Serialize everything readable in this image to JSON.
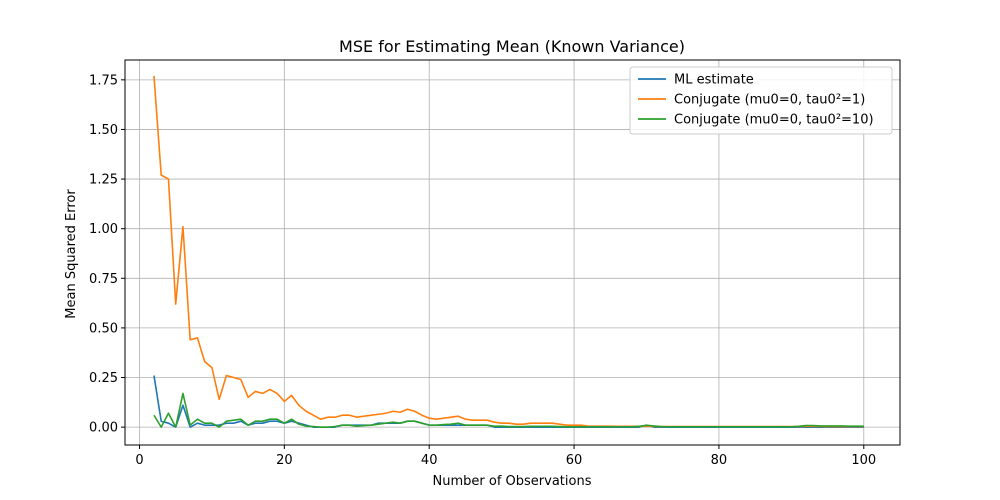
{
  "chart_data": {
    "type": "line",
    "title": "MSE for Estimating Mean (Known Variance)",
    "xlabel": "Number of Observations",
    "ylabel": "Mean Squared Error",
    "xlim": [
      -2,
      105
    ],
    "ylim": [
      -0.09,
      1.85
    ],
    "xticks": [
      0,
      20,
      40,
      60,
      80,
      100
    ],
    "xtick_labels": [
      "0",
      "20",
      "40",
      "60",
      "80",
      "100"
    ],
    "yticks": [
      0,
      0.25,
      0.5,
      0.75,
      1.0,
      1.25,
      1.5,
      1.75
    ],
    "ytick_labels": [
      "0.00",
      "0.25",
      "0.50",
      "0.75",
      "1.00",
      "1.25",
      "1.50",
      "1.75"
    ],
    "grid": true,
    "legend_position": "top-right",
    "x": [
      2,
      3,
      4,
      5,
      6,
      7,
      8,
      9,
      10,
      11,
      12,
      13,
      14,
      15,
      16,
      17,
      18,
      19,
      20,
      21,
      22,
      23,
      24,
      25,
      26,
      27,
      28,
      29,
      30,
      31,
      32,
      33,
      34,
      35,
      36,
      37,
      38,
      39,
      40,
      41,
      42,
      43,
      44,
      45,
      46,
      47,
      48,
      49,
      50,
      51,
      52,
      53,
      54,
      55,
      56,
      57,
      58,
      59,
      60,
      61,
      62,
      63,
      64,
      65,
      66,
      67,
      68,
      69,
      70,
      71,
      72,
      73,
      74,
      75,
      76,
      77,
      78,
      79,
      80,
      81,
      82,
      83,
      84,
      85,
      86,
      87,
      88,
      89,
      90,
      91,
      92,
      93,
      94,
      95,
      96,
      97,
      98,
      99,
      100
    ],
    "series": [
      {
        "name": "ML estimate",
        "color": "#1f77b4",
        "values": [
          0.26,
          0.03,
          0.02,
          0.0,
          0.11,
          0.0,
          0.02,
          0.01,
          0.01,
          0.01,
          0.02,
          0.02,
          0.03,
          0.01,
          0.02,
          0.02,
          0.03,
          0.03,
          0.02,
          0.03,
          0.02,
          0.01,
          0.0,
          0.0,
          0.0,
          0.0,
          0.01,
          0.01,
          0.01,
          0.01,
          0.01,
          0.02,
          0.02,
          0.02,
          0.02,
          0.03,
          0.03,
          0.02,
          0.01,
          0.01,
          0.01,
          0.01,
          0.01,
          0.01,
          0.01,
          0.01,
          0.01,
          0.0,
          0.0,
          0.0,
          0.0,
          0.0,
          0.0,
          0.0,
          0.0,
          0.0,
          0.0,
          0.0,
          0.0,
          0.0,
          0.0,
          0.0,
          0.0,
          0.0,
          0.0,
          0.0,
          0.0,
          0.0,
          0.01,
          0.0,
          0.0,
          0.0,
          0.0,
          0.0,
          0.0,
          0.0,
          0.0,
          0.0,
          0.0,
          0.0,
          0.0,
          0.0,
          0.0,
          0.0,
          0.0,
          0.0,
          0.0,
          0.0,
          0.0,
          0.0,
          0.0,
          0.0,
          0.0,
          0.0,
          0.0,
          0.0,
          0.0,
          0.0,
          0.0
        ]
      },
      {
        "name": "Conjugate (mu0=0, tau0²=1)",
        "color": "#ff7f0e",
        "values": [
          1.77,
          1.27,
          1.25,
          0.62,
          1.01,
          0.44,
          0.45,
          0.33,
          0.3,
          0.14,
          0.26,
          0.25,
          0.24,
          0.15,
          0.18,
          0.17,
          0.19,
          0.17,
          0.13,
          0.16,
          0.11,
          0.08,
          0.06,
          0.04,
          0.05,
          0.05,
          0.06,
          0.06,
          0.05,
          0.055,
          0.06,
          0.065,
          0.07,
          0.08,
          0.075,
          0.09,
          0.08,
          0.06,
          0.045,
          0.04,
          0.045,
          0.05,
          0.055,
          0.04,
          0.035,
          0.035,
          0.035,
          0.025,
          0.02,
          0.02,
          0.015,
          0.015,
          0.02,
          0.02,
          0.02,
          0.02,
          0.015,
          0.01,
          0.01,
          0.01,
          0.005,
          0.005,
          0.005,
          0.005,
          0.004,
          0.004,
          0.004,
          0.004,
          0.005,
          0.004,
          0.003,
          0.003,
          0.003,
          0.003,
          0.003,
          0.003,
          0.003,
          0.003,
          0.003,
          0.003,
          0.003,
          0.003,
          0.003,
          0.003,
          0.003,
          0.003,
          0.003,
          0.003,
          0.003,
          0.003,
          0.004,
          0.004,
          0.004,
          0.003,
          0.003,
          0.003,
          0.003,
          0.003,
          0.003
        ]
      },
      {
        "name": "Conjugate (mu0=0, tau0²=10)",
        "color": "#2ca02c",
        "values": [
          0.06,
          0.0,
          0.07,
          0.0,
          0.17,
          0.01,
          0.04,
          0.02,
          0.02,
          0.0,
          0.03,
          0.035,
          0.04,
          0.01,
          0.03,
          0.03,
          0.04,
          0.04,
          0.02,
          0.04,
          0.015,
          0.005,
          0.003,
          0.0,
          0.0,
          0.003,
          0.01,
          0.01,
          0.005,
          0.008,
          0.01,
          0.015,
          0.02,
          0.025,
          0.02,
          0.03,
          0.03,
          0.02,
          0.01,
          0.01,
          0.013,
          0.015,
          0.02,
          0.01,
          0.01,
          0.01,
          0.01,
          0.005,
          0.005,
          0.003,
          0.003,
          0.003,
          0.004,
          0.004,
          0.004,
          0.004,
          0.003,
          0.002,
          0.002,
          0.002,
          0.002,
          0.002,
          0.002,
          0.002,
          0.002,
          0.002,
          0.002,
          0.004,
          0.009,
          0.006,
          0.003,
          0.002,
          0.002,
          0.002,
          0.002,
          0.002,
          0.002,
          0.002,
          0.002,
          0.002,
          0.002,
          0.002,
          0.002,
          0.002,
          0.002,
          0.002,
          0.002,
          0.002,
          0.002,
          0.004,
          0.008,
          0.008,
          0.006,
          0.006,
          0.006,
          0.006,
          0.005,
          0.005,
          0.005
        ]
      }
    ]
  }
}
